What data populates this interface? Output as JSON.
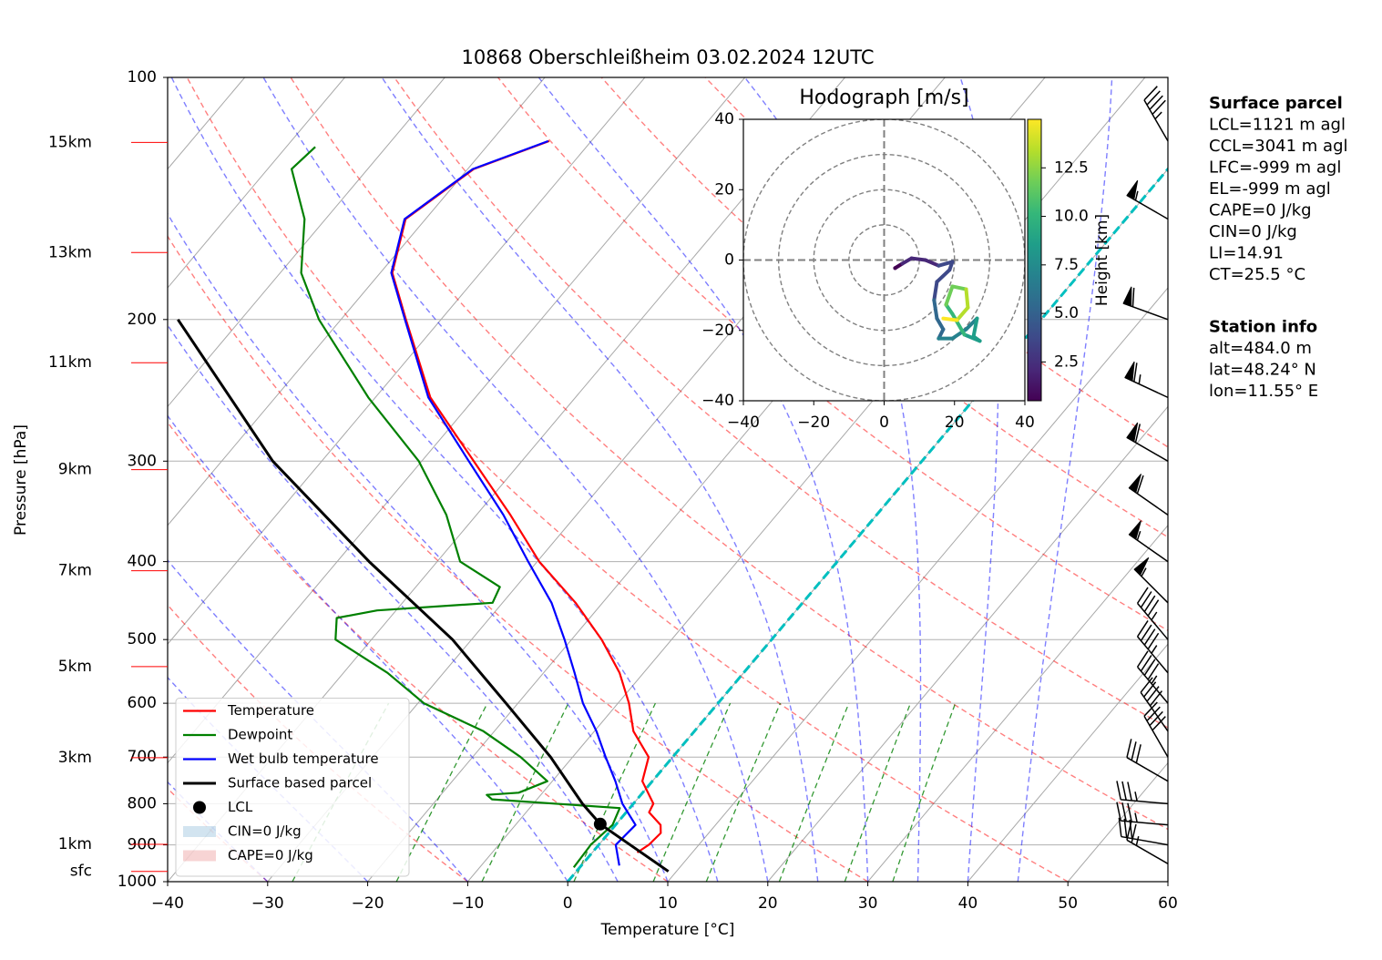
{
  "chart_data": [
    {
      "type": "skewt",
      "title": "10868 Oberschleißheim 03.02.2024 12UTC",
      "x_label": "Temperature [°C]",
      "y_label": "Pressure [hPa]",
      "xlim": [
        -40,
        60
      ],
      "ylim": [
        1000,
        100
      ],
      "log_y": true,
      "grid": true,
      "xticks": [
        {
          "value": -40,
          "label": "−40"
        },
        {
          "value": -30,
          "label": "−30"
        },
        {
          "value": -20,
          "label": "−20"
        },
        {
          "value": -10,
          "label": "−10"
        },
        0,
        10,
        20,
        30,
        40,
        50,
        60
      ],
      "yticks": [
        1000,
        900,
        800,
        700,
        600,
        500,
        400,
        300,
        200,
        100
      ],
      "series": [
        {
          "name": "Temperature",
          "color": "#ff0000",
          "pressure": [
            920,
            900,
            870,
            850,
            820,
            800,
            750,
            700,
            650,
            600,
            550,
            500,
            450,
            400,
            350,
            300,
            250,
            200,
            175,
            150,
            130,
            120
          ],
          "values": [
            4.5,
            5.0,
            5.2,
            4.5,
            2.3,
            2.0,
            -1.0,
            -2.4,
            -6.1,
            -8.9,
            -12.4,
            -17.0,
            -22.7,
            -29.8,
            -36.6,
            -44.8,
            -54.5,
            -63.5,
            -68.8,
            -72.0,
            -69.4,
            -64.2
          ]
        },
        {
          "name": "Dewpoint",
          "color": "#008000",
          "pressure": [
            960,
            900,
            850,
            810,
            790,
            780,
            775,
            750,
            700,
            650,
            600,
            550,
            500,
            470,
            460,
            450,
            430,
            400,
            350,
            300,
            250,
            200,
            175,
            150,
            130,
            122
          ],
          "values": [
            -0.6,
            -0.8,
            -0.3,
            -1.0,
            -14.5,
            -15.4,
            -12.4,
            -10.5,
            -15.2,
            -21.1,
            -29.4,
            -35.6,
            -43.6,
            -45.3,
            -41.9,
            -31.0,
            -31.6,
            -37.7,
            -43.0,
            -50.3,
            -60.7,
            -72.2,
            -77.9,
            -82.1,
            -87.6,
            -87.1
          ]
        },
        {
          "name": "Wet bulb temperature",
          "color": "#0000ff",
          "pressure": [
            955,
            900,
            850,
            800,
            750,
            700,
            650,
            600,
            550,
            500,
            450,
            400,
            350,
            300,
            250,
            200,
            175,
            150,
            130,
            120
          ],
          "values": [
            3.8,
            1.7,
            2.0,
            -1.1,
            -3.7,
            -6.7,
            -9.8,
            -13.5,
            -16.9,
            -20.7,
            -25.1,
            -30.9,
            -37.3,
            -45.3,
            -54.7,
            -63.6,
            -68.9,
            -72.1,
            -69.5,
            -64.3
          ]
        },
        {
          "name": "Surface based parcel",
          "color": "#000000",
          "pressure": [
            971,
            848,
            800,
            700,
            600,
            500,
            400,
            300,
            200
          ],
          "values": [
            9.2,
            -1.6,
            -5.1,
            -12.2,
            -21.2,
            -31.9,
            -46.8,
            -64.9,
            -86.3
          ]
        }
      ],
      "lcl": {
        "name": "LCL",
        "color": "#000000",
        "pressure": 848,
        "temperature": -1.6
      },
      "shading": [
        {
          "name": "CIN=0 J/kg",
          "color": "#1f77b4"
        },
        {
          "name": "CAPE=0 J/kg",
          "color": "#d62728"
        }
      ],
      "legend_location": "lower left",
      "isotherms": [
        -100,
        -90,
        -80,
        -70,
        -60,
        -50,
        -40,
        -30,
        -20,
        -10,
        0,
        10,
        20,
        30,
        40,
        50,
        60
      ],
      "dry_adiabats": [
        -30,
        -10,
        10,
        30,
        50,
        70,
        90,
        110,
        130,
        150
      ],
      "moist_adiabats": [
        -30,
        -20,
        -10,
        0,
        5,
        10,
        15,
        20,
        25,
        30,
        35,
        40,
        45
      ],
      "mixing_ratios": [
        0.4,
        1,
        2,
        4,
        7,
        10,
        16,
        24,
        32
      ],
      "freezing_isotherm": 0,
      "height_labels": [
        {
          "value": 1,
          "label": "1km"
        },
        {
          "value": 3,
          "label": "3km"
        },
        {
          "value": 5,
          "label": "5km"
        },
        {
          "value": 7,
          "label": "7km"
        },
        {
          "value": 9,
          "label": "9km"
        },
        {
          "value": 11,
          "label": "11km"
        },
        {
          "value": 13,
          "label": "13km"
        },
        {
          "value": 15,
          "label": "15km"
        }
      ],
      "surface_label": "sfc",
      "wind": {
        "pressure": [
          120,
          150,
          200,
          250,
          300,
          350,
          400,
          450,
          500,
          550,
          600,
          650,
          700,
          750,
          800,
          850,
          900,
          950
        ],
        "direction": [
          330,
          300,
          290,
          295,
          300,
          305,
          305,
          315,
          320,
          320,
          320,
          325,
          330,
          300,
          275,
          275,
          280,
          300
        ],
        "speed": [
          45,
          55,
          60,
          65,
          60,
          60,
          55,
          55,
          45,
          45,
          45,
          40,
          40,
          30,
          35,
          35,
          30,
          25
        ]
      },
      "info": [
        {
          "title": "Surface parcel",
          "lines": [
            "LCL=1121 m agl",
            "CCL=3041 m agl",
            "LFC=-999 m agl",
            "EL=-999 m agl",
            "CAPE=0 J/kg",
            "CIN=0 J/kg",
            "LI=14.91",
            "CT=25.5 °C"
          ]
        },
        {
          "title": "Station info",
          "lines": [
            "alt=484.0 m",
            "lat=48.24° N",
            "lon=11.55° E"
          ]
        }
      ]
    },
    {
      "type": "hodograph",
      "title": "Hodograph [m/s]",
      "xlim": [
        -40,
        40
      ],
      "ylim": [
        -40,
        40
      ],
      "xticks": [
        {
          "value": -40,
          "label": "−40"
        },
        {
          "value": -20,
          "label": "−20"
        },
        0,
        20,
        40
      ],
      "yticks": [
        {
          "value": -40,
          "label": "−40"
        },
        {
          "value": -20,
          "label": "−20"
        },
        0,
        20,
        40
      ],
      "rings": [
        10,
        20,
        30,
        40
      ],
      "u": [
        3.1,
        5.2,
        7.8,
        11.7,
        15.5,
        19.4,
        18.6,
        15.0,
        14.2,
        15.0,
        16.8,
        15.5,
        19.4,
        23.3,
        26.4,
        25.4,
        27.2,
        22.8,
        19.4,
        17.6,
        19.4,
        23.3,
        23.8,
        20.7,
        16.8
      ],
      "v": [
        -2.3,
        -1.0,
        0.5,
        0.0,
        -1.6,
        -0.5,
        -2.8,
        -6.2,
        -11.4,
        -16.6,
        -19.7,
        -22.3,
        -22.3,
        -19.7,
        -16.6,
        -21.7,
        -23.0,
        -21.2,
        -15.3,
        -12.7,
        -7.5,
        -8.3,
        -13.5,
        -17.1,
        -16.6
      ],
      "height": [
        0.5,
        1,
        1.5,
        2,
        2.5,
        3,
        3.5,
        4,
        4.5,
        5,
        5.5,
        6,
        6.5,
        7,
        7.5,
        8,
        8.5,
        9,
        9.5,
        10,
        11,
        12,
        13,
        14,
        15
      ],
      "colorbar_label": "Height [km]",
      "clim": [
        0.5,
        15
      ],
      "colorbar_ticks": [
        2.5,
        {
          "value": 5,
          "label": "5.0"
        },
        7.5,
        {
          "value": 10,
          "label": "10.0"
        },
        12.5
      ],
      "colormap": [
        "#440154",
        "#482878",
        "#3e4989",
        "#31688e",
        "#26828e",
        "#1f9e89",
        "#35b779",
        "#6ece58",
        "#b5de2b",
        "#fde725"
      ]
    }
  ]
}
